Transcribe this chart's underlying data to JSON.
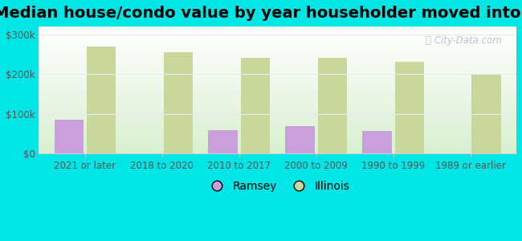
{
  "title": "Median house/condo value by year householder moved into unit",
  "categories": [
    "2021 or later",
    "2018 to 2020",
    "2010 to 2017",
    "2000 to 2009",
    "1990 to 1999",
    "1989 or earlier"
  ],
  "ramsey_values": [
    85000,
    0,
    60000,
    70000,
    57000,
    0
  ],
  "illinois_values": [
    270000,
    255000,
    242000,
    242000,
    232000,
    200000
  ],
  "ramsey_color": "#c9a0dc",
  "illinois_color": "#c8d89a",
  "background_outer": "#00e5e5",
  "background_inner_top": "#d8f0d0",
  "background_inner_bottom": "#ffffff",
  "ylabel_ticks": [
    0,
    100000,
    200000,
    300000
  ],
  "ylabel_labels": [
    "$0",
    "$100k",
    "$200k",
    "$300k"
  ],
  "legend_ramsey": "Ramsey",
  "legend_illinois": "Illinois",
  "ylim": [
    0,
    320000
  ],
  "bar_width": 0.38,
  "title_fontsize": 14,
  "tick_fontsize": 8.5,
  "legend_fontsize": 10,
  "watermark_color": "#aabccc",
  "grid_color": "#e8e8e8",
  "spine_color": "#cccccc"
}
